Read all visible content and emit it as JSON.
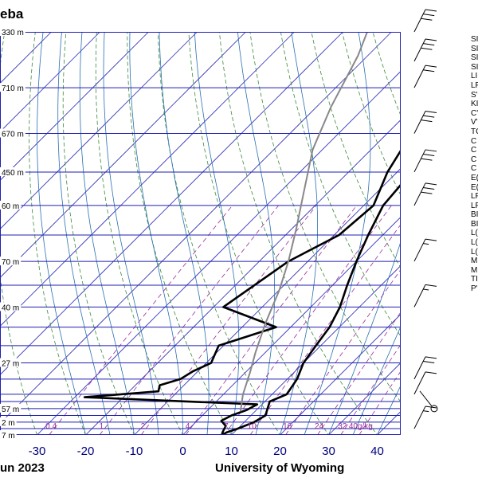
{
  "header": {
    "title": "eba"
  },
  "footer": {
    "date": "un 2023",
    "credit": "University of Wyoming"
  },
  "colors": {
    "isobar": "#1f1fb0",
    "isotherm": "#2a2ab8",
    "dry_adiabat": "#3a8a3a",
    "moist_adiabat": "#2a6fb0",
    "mixing_ratio": "#9a2a9a",
    "profile": "#000000",
    "parcel": "#888888",
    "tick_text": "#000080"
  },
  "chart_data": {
    "type": "line",
    "title": "eba",
    "xlabel": "",
    "ylabel": "",
    "x_ticks": [
      -30,
      -20,
      -10,
      0,
      10,
      20,
      30,
      40
    ],
    "xlim": [
      -40,
      45
    ],
    "pressure_range_hPa": [
      1000,
      200
    ],
    "isobars_hPa": [
      1000,
      975,
      950,
      925,
      900,
      875,
      850,
      800,
      750,
      700,
      650,
      600,
      550,
      500,
      450,
      400,
      350,
      300,
      250,
      200
    ],
    "height_labels": [
      {
        "height": "330 m",
        "p": 200
      },
      {
        "height": "710 m",
        "p": 250
      },
      {
        "height": "670 m",
        "p": 300
      },
      {
        "height": "450 m",
        "p": 350
      },
      {
        "height": "60 m",
        "p": 400
      },
      {
        "height": "70 m",
        "p": 500
      },
      {
        "height": "40 m",
        "p": 600
      },
      {
        "height": "27 m",
        "p": 750
      },
      {
        "height": "57 m",
        "p": 900
      },
      {
        "height": "2 m",
        "p": 950
      },
      {
        "height": "7 m",
        "p": 1000
      }
    ],
    "mixing_ratio_labels": [
      "0.4",
      "1",
      "2",
      "4",
      "7",
      "10",
      "16",
      "24",
      "32",
      "40g/kg"
    ],
    "series": [
      {
        "role": "temperature",
        "points": [
          [
            8,
            1000
          ],
          [
            8.5,
            990
          ],
          [
            10,
            975
          ],
          [
            12,
            950
          ],
          [
            13,
            925
          ],
          [
            12,
            900
          ],
          [
            11,
            875
          ],
          [
            13,
            850
          ],
          [
            12,
            800
          ],
          [
            10,
            750
          ],
          [
            9,
            700
          ],
          [
            8,
            650
          ],
          [
            6,
            600
          ],
          [
            3,
            550
          ],
          [
            0,
            500
          ],
          [
            -3,
            450
          ],
          [
            -6,
            400
          ],
          [
            -7,
            350
          ],
          [
            -3,
            300
          ],
          [
            -2,
            280
          ],
          [
            3,
            260
          ],
          [
            8,
            250
          ],
          [
            13,
            240
          ],
          [
            16,
            230
          ],
          [
            18,
            220
          ],
          [
            23,
            210
          ],
          [
            32,
            200
          ]
        ]
      },
      {
        "role": "dewpoint",
        "points": [
          [
            8,
            1000
          ],
          [
            7.5,
            985
          ],
          [
            7,
            965
          ],
          [
            5,
            945
          ],
          [
            6,
            925
          ],
          [
            8,
            905
          ],
          [
            9,
            885
          ],
          [
            -28,
            860
          ],
          [
            -14,
            840
          ],
          [
            -15,
            820
          ],
          [
            -12,
            800
          ],
          [
            -11,
            775
          ],
          [
            -9,
            750
          ],
          [
            -11,
            700
          ],
          [
            -3,
            650
          ],
          [
            -18,
            600
          ],
          [
            -14,
            500
          ],
          [
            -9,
            450
          ],
          [
            -8,
            400
          ],
          [
            -12,
            350
          ],
          [
            -15,
            300
          ],
          [
            -22,
            260
          ],
          [
            -18,
            250
          ],
          [
            -15,
            235
          ],
          [
            -10,
            220
          ],
          [
            -6,
            210
          ],
          [
            0,
            200
          ]
        ]
      },
      {
        "role": "parcel",
        "points": [
          [
            7,
            910
          ],
          [
            4,
            850
          ],
          [
            1,
            780
          ],
          [
            -2,
            720
          ],
          [
            -6,
            640
          ],
          [
            -10,
            560
          ],
          [
            -14,
            500
          ],
          [
            -19,
            440
          ],
          [
            -25,
            380
          ],
          [
            -32,
            320
          ],
          [
            -37,
            270
          ],
          [
            -42,
            220
          ],
          [
            -45,
            200
          ]
        ]
      }
    ],
    "wind_barbs": [
      {
        "p": 200,
        "flags": 0,
        "full": 3,
        "half": 0
      },
      {
        "p": 225,
        "flags": 0,
        "full": 3,
        "half": 0
      },
      {
        "p": 250,
        "flags": 0,
        "full": 2,
        "half": 0
      },
      {
        "p": 300,
        "flags": 0,
        "full": 3,
        "half": 0
      },
      {
        "p": 350,
        "flags": 0,
        "full": 3,
        "half": 0
      },
      {
        "p": 400,
        "flags": 0,
        "full": 3,
        "half": 0
      },
      {
        "p": 500,
        "flags": 0,
        "full": 1,
        "half": 1
      },
      {
        "p": 600,
        "flags": 0,
        "full": 1,
        "half": 1
      },
      {
        "p": 800,
        "flags": 0,
        "full": 2,
        "half": 0
      },
      {
        "p": 850,
        "flags": 0,
        "full": 1,
        "half": 0
      },
      {
        "p": 900,
        "calm": true
      },
      {
        "p": 975,
        "flags": 0,
        "full": 1,
        "half": 1
      }
    ],
    "indices_labels": [
      "SI",
      "SI",
      "SI",
      "SI",
      "LI",
      "LF",
      "S'",
      "KI",
      "C'",
      "V'",
      "TC",
      "C",
      "C",
      "C",
      "C",
      "E(",
      "E(",
      "LF",
      "LF",
      "BI",
      "BI",
      "L(",
      "L(",
      "L(",
      "M",
      "M",
      "TI",
      "P'"
    ]
  }
}
